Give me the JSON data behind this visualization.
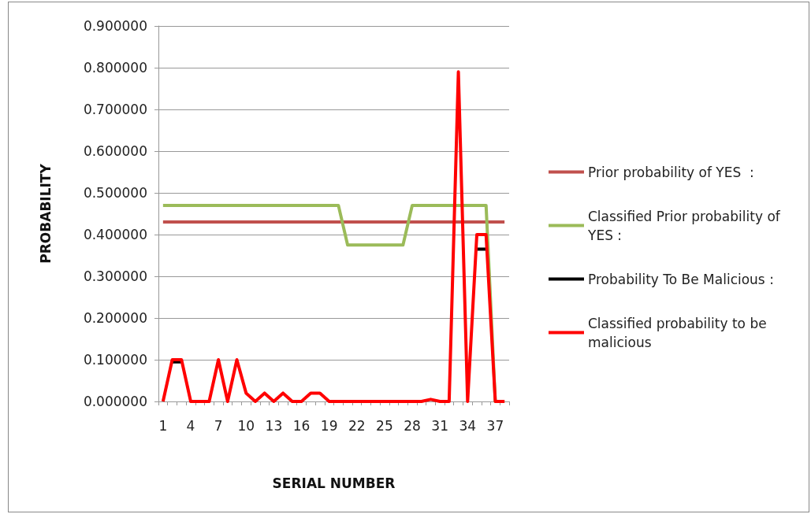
{
  "chart_data": {
    "type": "line",
    "xlabel": "SERIAL NUMBER",
    "ylabel": "PROBABILITY",
    "categories": [
      "1",
      null,
      null,
      "4",
      null,
      null,
      "7",
      null,
      null,
      "10",
      null,
      null,
      "13",
      null,
      null,
      "16",
      null,
      null,
      "19",
      null,
      null,
      "22",
      null,
      null,
      "25",
      null,
      null,
      "28",
      null,
      null,
      "31",
      null,
      null,
      "34",
      null,
      null,
      "37",
      null
    ],
    "series": [
      {
        "name": "Prior probability of YES  :",
        "color": "#c0504d",
        "values": [
          0.43,
          0.43,
          0.43,
          0.43,
          0.43,
          0.43,
          0.43,
          0.43,
          0.43,
          0.43,
          0.43,
          0.43,
          0.43,
          0.43,
          0.43,
          0.43,
          0.43,
          0.43,
          0.43,
          0.43,
          0.43,
          0.43,
          0.43,
          0.43,
          0.43,
          0.43,
          0.43,
          0.43,
          0.43,
          0.43,
          0.43,
          0.43,
          0.43,
          0.43,
          0.43,
          0.43,
          0.43,
          0.43
        ]
      },
      {
        "name": "Classified Prior probability of YES :",
        "color": "#9bbb59",
        "values": [
          0.47,
          0.47,
          0.47,
          0.47,
          0.47,
          0.47,
          0.47,
          0.47,
          0.47,
          0.47,
          0.47,
          0.47,
          0.47,
          0.47,
          0.47,
          0.47,
          0.47,
          0.47,
          0.47,
          0.47,
          0.375,
          0.375,
          0.375,
          0.375,
          0.375,
          0.375,
          0.375,
          0.47,
          0.47,
          0.47,
          0.47,
          0.47,
          0.47,
          0.47,
          0.47,
          0.47,
          0,
          0
        ]
      },
      {
        "name": "Probability To Be Malicious :",
        "color": "#000000",
        "values": [
          null,
          0.095,
          0.095,
          null,
          null,
          null,
          null,
          null,
          null,
          null,
          null,
          null,
          null,
          null,
          null,
          null,
          null,
          null,
          null,
          null,
          null,
          null,
          null,
          null,
          null,
          null,
          null,
          null,
          null,
          null,
          null,
          null,
          null,
          null,
          0.365,
          0.365,
          null,
          null
        ]
      },
      {
        "name": "Classified probability to be malicious",
        "color": "#ff0000",
        "values": [
          0,
          0.1,
          0.1,
          0,
          0,
          0,
          0.1,
          0,
          0.1,
          0.02,
          0,
          0.02,
          0,
          0.02,
          0,
          0,
          0.02,
          0.02,
          0,
          0,
          0,
          0,
          0,
          0,
          0,
          0,
          0,
          0,
          0,
          0.005,
          0,
          0,
          0.79,
          0,
          0.4,
          0.4,
          0,
          0
        ]
      }
    ],
    "ylim": [
      0,
      0.9
    ],
    "yticks": [
      {
        "value": 0,
        "label": "0.000000"
      },
      {
        "value": 0.1,
        "label": "0.100000"
      },
      {
        "value": 0.2,
        "label": "0.200000"
      },
      {
        "value": 0.3,
        "label": "0.300000"
      },
      {
        "value": 0.4,
        "label": "0.400000"
      },
      {
        "value": 0.5,
        "label": "0.500000"
      },
      {
        "value": 0.6,
        "label": "0.600000"
      },
      {
        "value": 0.7,
        "label": "0.700000"
      },
      {
        "value": 0.8,
        "label": "0.800000"
      },
      {
        "value": 0.9,
        "label": "0.900000"
      }
    ],
    "grid": "y",
    "legend": "right",
    "marker": "none",
    "line_style": "solid"
  }
}
